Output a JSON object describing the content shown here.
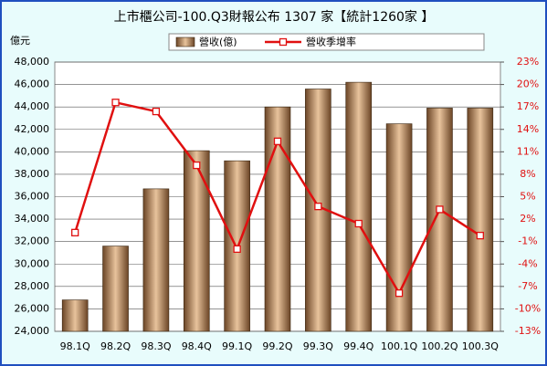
{
  "chart_data": {
    "type": "bar_line",
    "title": "上市櫃公司-100.Q3財報公布 1307 家【統計1260家 】",
    "y_label": "億元",
    "categories": [
      "98.1Q",
      "98.2Q",
      "98.3Q",
      "98.4Q",
      "99.1Q",
      "99.2Q",
      "99.3Q",
      "99.4Q",
      "100.1Q",
      "100.2Q",
      "100.3Q"
    ],
    "series": [
      {
        "name": "營收(億)",
        "type": "bar",
        "color": "#e8c39c",
        "values": [
          26800,
          31600,
          36700,
          40100,
          39200,
          44000,
          45600,
          46200,
          42500,
          43900,
          43900
        ]
      },
      {
        "name": "營收季增率",
        "type": "line",
        "axis": "y2",
        "color": "#e01010",
        "values": [
          0.2,
          17.6,
          16.4,
          9.2,
          -2,
          12.4,
          3.7,
          1.4,
          -7.9,
          3.3,
          -0.2
        ]
      }
    ],
    "ylim": [
      24000,
      48000
    ],
    "yticks": [
      {
        "value": 24000,
        "label": "24,000"
      },
      {
        "value": 26000,
        "label": "26,000"
      },
      {
        "value": 28000,
        "label": "28,000"
      },
      {
        "value": 30000,
        "label": "30,000"
      },
      {
        "value": 32000,
        "label": "32,000"
      },
      {
        "value": 34000,
        "label": "34,000"
      },
      {
        "value": 36000,
        "label": "36,000"
      },
      {
        "value": 38000,
        "label": "38,000"
      },
      {
        "value": 40000,
        "label": "40,000"
      },
      {
        "value": 42000,
        "label": "42,000"
      },
      {
        "value": 44000,
        "label": "44,000"
      },
      {
        "value": 46000,
        "label": "46,000"
      },
      {
        "value": 48000,
        "label": "48,000"
      }
    ],
    "y2lim": [
      -13,
      23
    ],
    "y2ticks": [
      {
        "value": -13,
        "label": "-13%"
      },
      {
        "value": -10,
        "label": "-10%"
      },
      {
        "value": -7,
        "label": "-7%"
      },
      {
        "value": -4,
        "label": "-4%"
      },
      {
        "value": -1,
        "label": "-1%"
      },
      {
        "value": 2,
        "label": "2%"
      },
      {
        "value": 5,
        "label": "5%"
      },
      {
        "value": 8,
        "label": "8%"
      },
      {
        "value": 11,
        "label": "11%"
      },
      {
        "value": 14,
        "label": "14%"
      },
      {
        "value": 17,
        "label": "17%"
      },
      {
        "value": 20,
        "label": "20%"
      },
      {
        "value": 23,
        "label": "23%"
      }
    ],
    "grid": true
  }
}
